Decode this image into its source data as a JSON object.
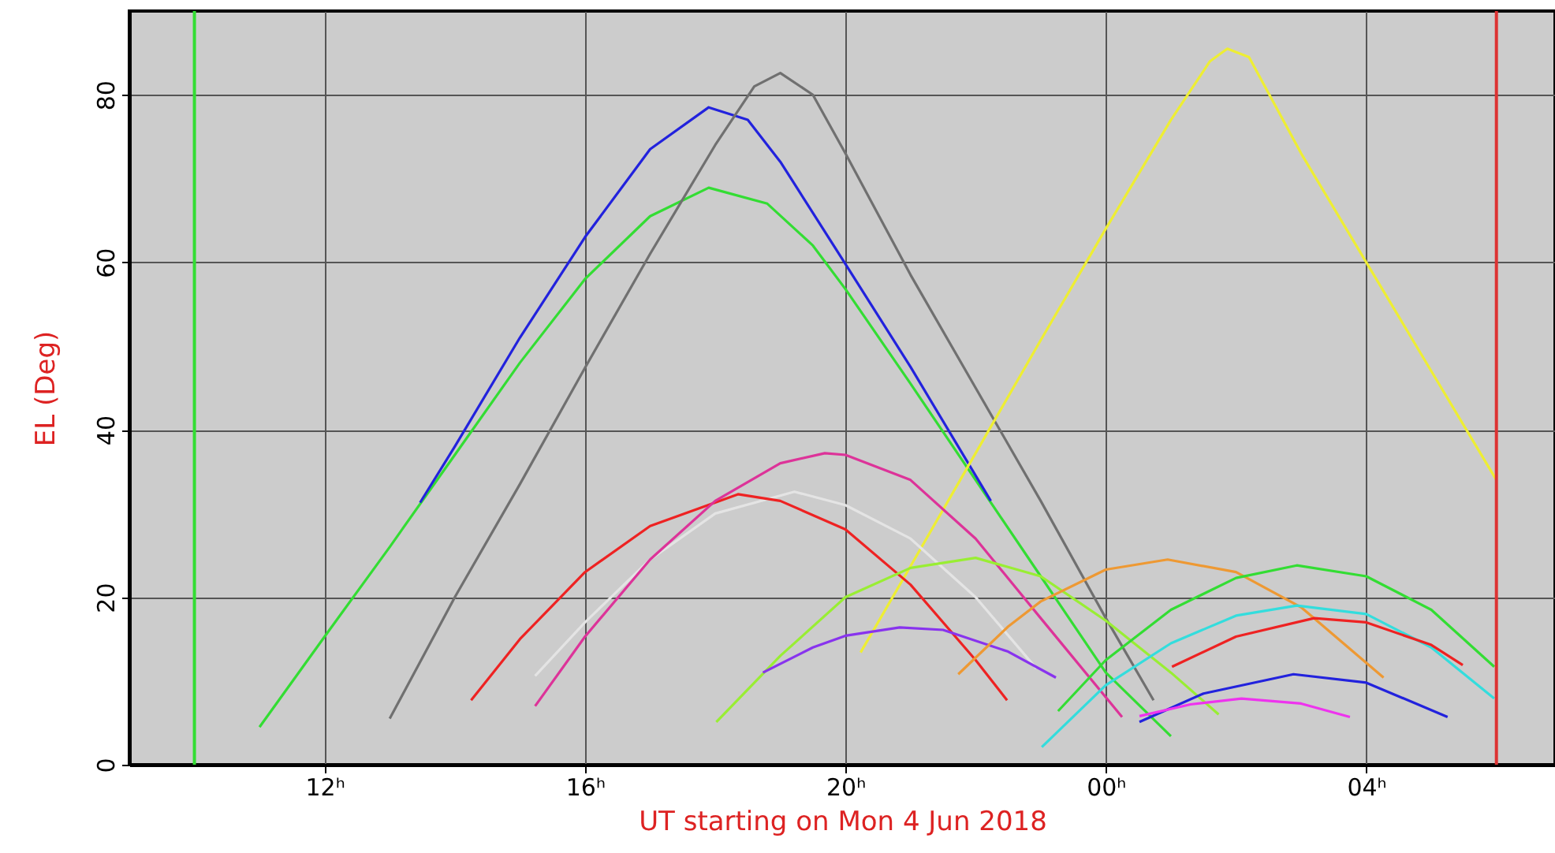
{
  "chart_data": {
    "type": "line",
    "xlabel": "UT starting on Mon    4 Jun 2018",
    "ylabel": "EL (Deg)",
    "xlim": [
      "2018-06-04T09:00",
      "2018-06-05T06:54"
    ],
    "ylim": [
      0,
      90
    ],
    "xticks": [
      {
        "value": "2018-06-04T12:00",
        "label": "12ʰ"
      },
      {
        "value": "2018-06-04T16:00",
        "label": "16ʰ"
      },
      {
        "value": "2018-06-04T20:00",
        "label": "20ʰ"
      },
      {
        "value": "2018-06-05T00:00",
        "label": "00ʰ"
      },
      {
        "value": "2018-06-05T04:00",
        "label": "04ʰ"
      }
    ],
    "yticks": [
      0,
      20,
      40,
      60,
      80
    ],
    "grid": true,
    "ref_lines": [
      {
        "axis": "x",
        "value": "2018-06-04T10:00",
        "color": "#33dd33"
      },
      {
        "axis": "x",
        "value": "2018-06-05T06:00",
        "color": "#dd3333"
      }
    ],
    "series": [
      {
        "color": "#33dd33",
        "x": [
          "2018-06-04T11:00",
          "2018-06-04T12:00",
          "2018-06-04T13:00",
          "2018-06-04T14:00",
          "2018-06-04T15:00",
          "2018-06-04T16:00",
          "2018-06-04T17:00",
          "2018-06-04T17:54",
          "2018-06-04T18:48",
          "2018-06-04T19:30",
          "2018-06-04T20:00",
          "2018-06-04T21:00",
          "2018-06-04T22:00",
          "2018-06-04T23:00",
          "2018-06-05T00:00",
          "2018-06-05T01:00"
        ],
        "values": [
          4.5,
          15.3,
          26,
          37,
          48,
          58,
          65.5,
          68.9,
          67,
          62,
          56.8,
          45.5,
          34,
          22.5,
          11,
          3.4
        ]
      },
      {
        "color": "#2222dd",
        "x": [
          "2018-06-04T13:28",
          "2018-06-04T14:00",
          "2018-06-04T15:00",
          "2018-06-04T16:00",
          "2018-06-04T17:00",
          "2018-06-04T17:54",
          "2018-06-04T18:30",
          "2018-06-04T19:00",
          "2018-06-04T20:00",
          "2018-06-04T21:00",
          "2018-06-04T22:14"
        ],
        "values": [
          31.3,
          38,
          51,
          63,
          73.5,
          78.5,
          77,
          72,
          59.8,
          47.5,
          31.5
        ]
      },
      {
        "color": "#707070",
        "x": [
          "2018-06-04T13:00",
          "2018-06-04T14:00",
          "2018-06-04T15:00",
          "2018-06-04T16:00",
          "2018-06-04T17:00",
          "2018-06-04T18:00",
          "2018-06-04T18:36",
          "2018-06-04T19:00",
          "2018-06-04T19:30",
          "2018-06-04T20:00",
          "2018-06-04T21:00",
          "2018-06-04T22:00",
          "2018-06-04T23:00",
          "2018-06-05T00:00",
          "2018-06-05T00:44"
        ],
        "values": [
          5.5,
          20,
          33.5,
          47.4,
          61,
          74,
          81,
          82.6,
          80,
          73,
          58.5,
          45,
          31.5,
          17.5,
          7.7
        ]
      },
      {
        "color": "#eeee33",
        "x": [
          "2018-06-04T20:14",
          "2018-06-04T21:00",
          "2018-06-04T22:00",
          "2018-06-04T23:00",
          "2018-06-05T00:00",
          "2018-06-05T01:00",
          "2018-06-05T01:36",
          "2018-06-05T01:52",
          "2018-06-05T02:12",
          "2018-06-05T03:00",
          "2018-06-05T04:00",
          "2018-06-05T05:00",
          "2018-06-05T06:00"
        ],
        "values": [
          13.4,
          23.7,
          37.2,
          50.7,
          64,
          77,
          84,
          85.5,
          84.5,
          73,
          60,
          47,
          34
        ]
      },
      {
        "color": "#e4e4e4",
        "x": [
          "2018-06-04T15:14",
          "2018-06-04T16:00",
          "2018-06-04T17:00",
          "2018-06-04T18:00",
          "2018-06-04T19:13",
          "2018-06-04T20:00",
          "2018-06-04T21:00",
          "2018-06-04T22:00",
          "2018-06-04T22:56"
        ],
        "values": [
          10.6,
          17,
          24.5,
          30,
          32.6,
          31,
          27,
          20,
          11.5
        ]
      },
      {
        "color": "#ee2222",
        "x": [
          "2018-06-04T14:15",
          "2018-06-04T15:00",
          "2018-06-04T16:00",
          "2018-06-04T17:00",
          "2018-06-04T18:21",
          "2018-06-04T19:00",
          "2018-06-04T20:00",
          "2018-06-04T21:00",
          "2018-06-04T22:00",
          "2018-06-04T22:29"
        ],
        "values": [
          7.7,
          15,
          23,
          28.5,
          32.3,
          31.5,
          28.1,
          21.5,
          12.5,
          7.7
        ]
      },
      {
        "color": "#dd3399",
        "x": [
          "2018-06-04T15:14",
          "2018-06-04T16:00",
          "2018-06-04T17:00",
          "2018-06-04T18:00",
          "2018-06-04T19:00",
          "2018-06-04T19:41",
          "2018-06-04T20:00",
          "2018-06-04T21:00",
          "2018-06-04T22:00",
          "2018-06-04T23:00",
          "2018-06-05T00:15"
        ],
        "values": [
          7,
          15.3,
          24.5,
          31.5,
          36,
          37.2,
          37,
          34,
          27,
          17.5,
          5.7
        ]
      },
      {
        "color": "#99ee33",
        "x": [
          "2018-06-04T18:01",
          "2018-06-04T19:00",
          "2018-06-04T20:00",
          "2018-06-04T21:00",
          "2018-06-04T22:00",
          "2018-06-04T23:00",
          "2018-06-05T00:00",
          "2018-06-05T01:00",
          "2018-06-05T01:44"
        ],
        "values": [
          5.1,
          13,
          20,
          23.5,
          24.7,
          22.5,
          17.2,
          11,
          6
        ]
      },
      {
        "color": "#8833ee",
        "x": [
          "2018-06-04T18:44",
          "2018-06-04T19:30",
          "2018-06-04T20:00",
          "2018-06-04T20:50",
          "2018-06-04T21:30",
          "2018-06-04T22:30",
          "2018-06-04T23:14"
        ],
        "values": [
          11,
          14,
          15.4,
          16.4,
          16.1,
          13.5,
          10.4
        ]
      },
      {
        "color": "#ee9933",
        "x": [
          "2018-06-04T21:44",
          "2018-06-04T22:30",
          "2018-06-04T23:00",
          "2018-06-05T00:00",
          "2018-06-05T00:57",
          "2018-06-05T02:00",
          "2018-06-05T03:00",
          "2018-06-05T04:16"
        ],
        "values": [
          10.8,
          16.5,
          19.5,
          23.3,
          24.5,
          23,
          18.8,
          10.4
        ]
      },
      {
        "color": "#33dd33",
        "x": [
          "2018-06-04T23:16",
          "2018-06-05T00:00",
          "2018-06-05T01:00",
          "2018-06-05T02:00",
          "2018-06-05T02:56",
          "2018-06-05T04:00",
          "2018-06-05T05:00",
          "2018-06-05T05:58"
        ],
        "values": [
          6.4,
          12.5,
          18.5,
          22.3,
          23.8,
          22.5,
          18.5,
          11.7
        ]
      },
      {
        "color": "#33dddd",
        "x": [
          "2018-06-04T23:01",
          "2018-06-05T00:00",
          "2018-06-05T01:00",
          "2018-06-05T02:00",
          "2018-06-05T02:56",
          "2018-06-05T04:00",
          "2018-06-05T05:00",
          "2018-06-05T05:58"
        ],
        "values": [
          2.1,
          9.5,
          14.5,
          17.8,
          19,
          18,
          14,
          7.9
        ]
      },
      {
        "color": "#ee2222",
        "x": [
          "2018-06-05T01:01",
          "2018-06-05T02:00",
          "2018-06-05T03:12",
          "2018-06-05T04:00",
          "2018-06-05T05:00",
          "2018-06-05T05:29"
        ],
        "values": [
          11.7,
          15.3,
          17.5,
          17,
          14.3,
          11.9
        ]
      },
      {
        "color": "#2222dd",
        "x": [
          "2018-06-05T00:31",
          "2018-06-05T01:30",
          "2018-06-05T02:53",
          "2018-06-05T04:00",
          "2018-06-05T05:15"
        ],
        "values": [
          5.1,
          8.5,
          10.8,
          9.8,
          5.7
        ]
      },
      {
        "color": "#ee33ee",
        "x": [
          "2018-06-05T00:31",
          "2018-06-05T01:18",
          "2018-06-05T02:05",
          "2018-06-05T03:00",
          "2018-06-05T03:45"
        ],
        "values": [
          5.8,
          7.2,
          7.9,
          7.3,
          5.7
        ]
      }
    ]
  }
}
